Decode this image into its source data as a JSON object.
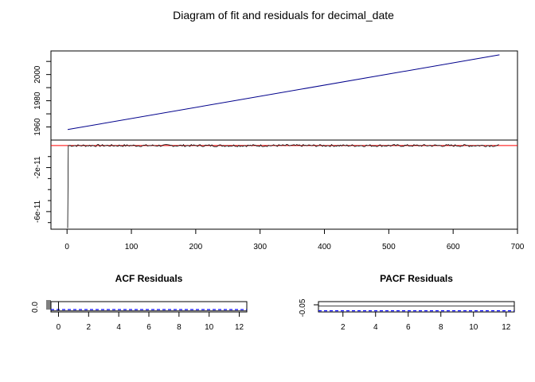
{
  "title": "Diagram of fit and residuals for decimal_date",
  "chart_data": [
    {
      "type": "line",
      "panel": "fit",
      "x_range": [
        1,
        672
      ],
      "ylim": [
        1950,
        2018
      ],
      "y_ticks": [
        1960,
        1980,
        2000
      ],
      "y_tick_labels": [
        "1960",
        "1980",
        "2000"
      ],
      "series": [
        {
          "color": "#00008B",
          "x": [
            1,
            672
          ],
          "y": [
            1958.0,
            2015.0
          ]
        }
      ]
    },
    {
      "type": "line",
      "panel": "residuals",
      "xlim": [
        -25,
        700
      ],
      "x_ticks": [
        0,
        100,
        200,
        300,
        400,
        500,
        600,
        700
      ],
      "x_tick_labels": [
        "0",
        "100",
        "200",
        "300",
        "400",
        "500",
        "600",
        "700"
      ],
      "ylim": [
        -7.6e-11,
        5e-12
      ],
      "y_ticks": [
        -2e-11,
        -6e-11
      ],
      "y_tick_labels": [
        "-2e-11",
        "-6e-11"
      ],
      "zero_line_color": "#FF0000",
      "series": [
        {
          "color": "#000000",
          "x": [
            1,
            2,
            672
          ],
          "y": [
            -7.5e-11,
            0,
            0
          ],
          "noise_amplitude": 1e-12
        }
      ]
    },
    {
      "type": "bar",
      "title": "ACF Residuals",
      "xlim": [
        -0.5,
        12.5
      ],
      "x_ticks": [
        0,
        2,
        4,
        6,
        8,
        10,
        12
      ],
      "x_tick_labels": [
        "0",
        "2",
        "4",
        "6",
        "8",
        "10",
        "12"
      ],
      "y_tick_labels": [
        "0.0"
      ],
      "lags": [
        0
      ],
      "values": [
        1.0
      ],
      "conf_line_color": "#0000FF"
    },
    {
      "type": "bar",
      "title": "PACF Residuals",
      "xlim": [
        0.5,
        12.5
      ],
      "x_ticks": [
        2,
        4,
        6,
        8,
        10,
        12
      ],
      "x_tick_labels": [
        "2",
        "4",
        "6",
        "8",
        "10",
        "12"
      ],
      "y_tick_labels": [
        "-0.05"
      ],
      "conf_line_color": "#0000FF"
    }
  ]
}
